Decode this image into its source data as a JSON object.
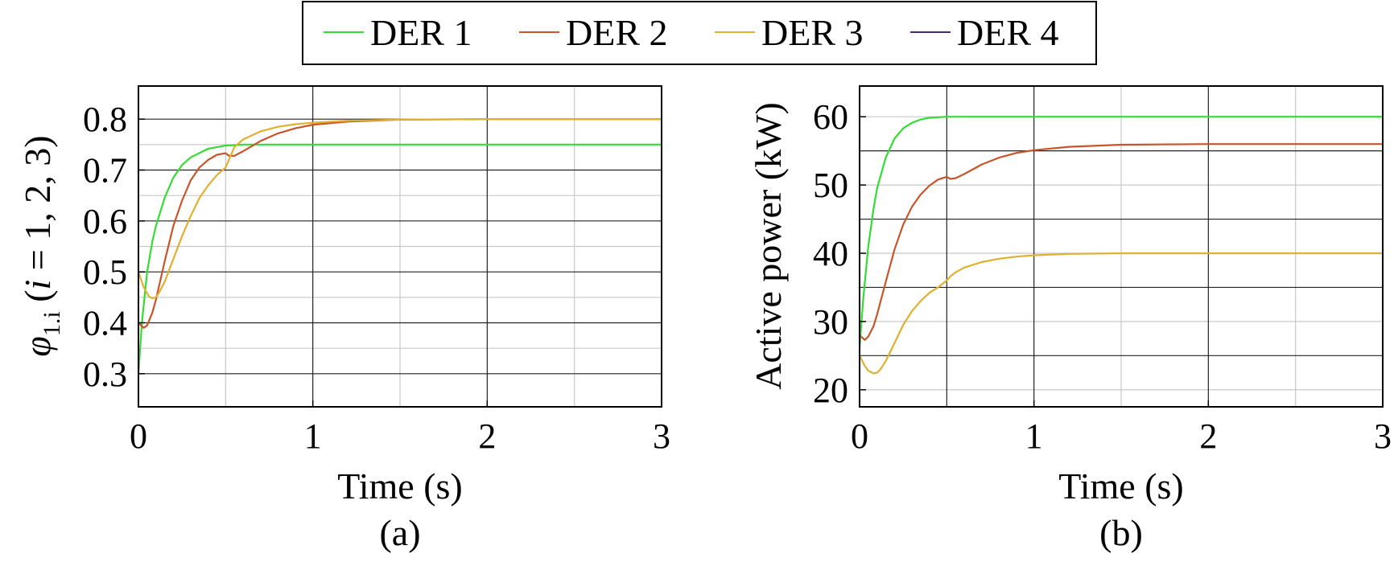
{
  "legend": {
    "entries": [
      {
        "label": "DER 1",
        "color": "#33dd33"
      },
      {
        "label": "DER 2",
        "color": "#c8552a"
      },
      {
        "label": "DER 3",
        "color": "#e0b030"
      },
      {
        "label": "DER 4",
        "color": "#4a2a6a"
      }
    ]
  },
  "chart_data": [
    {
      "type": "line",
      "caption": "(a)",
      "xlabel": "Time (s)",
      "ylabel_symbol": "φ",
      "ylabel_subscript": "1.i",
      "ylabel_rest_open": " (",
      "ylabel_italic": "i",
      "ylabel_rest_close": " = 1, 2, 3)",
      "xlim": [
        0,
        3
      ],
      "ylim": [
        0.235,
        0.865
      ],
      "xticks": [
        0,
        1,
        2,
        3
      ],
      "xtick_labels": [
        "0",
        "1",
        "2",
        "3"
      ],
      "yticks": [
        0.3,
        0.4,
        0.5,
        0.6,
        0.7,
        0.8
      ],
      "ytick_labels": [
        "0.3",
        "0.4",
        "0.5",
        "0.6",
        "0.7",
        "0.8"
      ],
      "major_grid_x": [
        1,
        2
      ],
      "minor_grid_x": [
        0.5,
        1.5,
        2.5
      ],
      "major_grid_y": [
        0.3,
        0.4,
        0.5,
        0.6,
        0.7,
        0.8
      ],
      "minor_grid_y": [
        0.35,
        0.45,
        0.55,
        0.65,
        0.75
      ],
      "grid": true,
      "series": [
        {
          "name": "DER 1",
          "color": "#33dd33",
          "x": [
            0,
            0.02,
            0.05,
            0.08,
            0.1,
            0.15,
            0.2,
            0.25,
            0.3,
            0.4,
            0.5,
            0.6,
            0.8,
            1.0,
            1.5,
            2.0,
            3.0
          ],
          "y": [
            0.3,
            0.4,
            0.5,
            0.56,
            0.59,
            0.645,
            0.685,
            0.71,
            0.725,
            0.742,
            0.748,
            0.75,
            0.75,
            0.75,
            0.75,
            0.75,
            0.75
          ]
        },
        {
          "name": "DER 2",
          "color": "#c8552a",
          "x": [
            0,
            0.03,
            0.05,
            0.08,
            0.1,
            0.15,
            0.2,
            0.25,
            0.3,
            0.35,
            0.4,
            0.45,
            0.5,
            0.52,
            0.55,
            0.6,
            0.7,
            0.8,
            0.9,
            1.0,
            1.2,
            1.5,
            2.0,
            3.0
          ],
          "y": [
            0.4,
            0.39,
            0.395,
            0.42,
            0.445,
            0.52,
            0.59,
            0.64,
            0.68,
            0.705,
            0.72,
            0.73,
            0.733,
            0.728,
            0.728,
            0.737,
            0.757,
            0.772,
            0.782,
            0.789,
            0.795,
            0.799,
            0.8,
            0.8
          ]
        },
        {
          "name": "DER 3",
          "color": "#e0b030",
          "x": [
            0,
            0.03,
            0.06,
            0.08,
            0.1,
            0.12,
            0.15,
            0.2,
            0.25,
            0.3,
            0.35,
            0.4,
            0.45,
            0.5,
            0.55,
            0.6,
            0.7,
            0.8,
            0.9,
            1.0,
            1.2,
            1.5,
            2.0,
            3.0
          ],
          "y": [
            0.5,
            0.47,
            0.452,
            0.448,
            0.45,
            0.46,
            0.48,
            0.525,
            0.57,
            0.61,
            0.645,
            0.67,
            0.69,
            0.705,
            0.745,
            0.76,
            0.776,
            0.785,
            0.79,
            0.793,
            0.797,
            0.799,
            0.8,
            0.8
          ]
        }
      ]
    },
    {
      "type": "line",
      "caption": "(b)",
      "xlabel": "Time (s)",
      "ylabel": "Active power (kW)",
      "xlim": [
        0,
        3
      ],
      "ylim": [
        17.5,
        64.5
      ],
      "xticks": [
        0,
        1,
        2,
        3
      ],
      "xtick_labels": [
        "0",
        "1",
        "2",
        "3"
      ],
      "yticks": [
        20,
        30,
        40,
        50,
        60
      ],
      "ytick_labels": [
        "20",
        "30",
        "40",
        "50",
        "60"
      ],
      "major_grid_x": [
        0.5,
        1,
        2
      ],
      "minor_grid_x": [
        1.5,
        2.5
      ],
      "major_grid_y": [
        25,
        35,
        45,
        55
      ],
      "minor_grid_y": [
        20,
        30,
        40,
        50,
        60
      ],
      "grid": true,
      "series": [
        {
          "name": "DER 1",
          "color": "#33dd33",
          "x": [
            0,
            0.02,
            0.05,
            0.08,
            0.1,
            0.15,
            0.2,
            0.25,
            0.3,
            0.35,
            0.4,
            0.5,
            0.6,
            0.8,
            1.0,
            2.0,
            3.0
          ],
          "y": [
            26,
            33,
            41,
            46.5,
            49.5,
            54,
            56.8,
            58.3,
            59.1,
            59.6,
            59.85,
            60,
            60,
            60,
            60,
            60,
            60
          ]
        },
        {
          "name": "DER 2",
          "color": "#c8552a",
          "x": [
            0,
            0.03,
            0.05,
            0.08,
            0.1,
            0.15,
            0.2,
            0.25,
            0.3,
            0.35,
            0.4,
            0.45,
            0.5,
            0.52,
            0.55,
            0.6,
            0.7,
            0.8,
            0.9,
            1.0,
            1.2,
            1.5,
            2.0,
            3.0
          ],
          "y": [
            28,
            27.3,
            27.8,
            29.3,
            31,
            35.8,
            40.5,
            44.2,
            46.8,
            48.6,
            49.9,
            50.8,
            51.2,
            50.9,
            51,
            51.6,
            53,
            54,
            54.7,
            55.1,
            55.6,
            55.9,
            56,
            56
          ]
        },
        {
          "name": "DER 3",
          "color": "#e0b030",
          "x": [
            0,
            0.03,
            0.05,
            0.08,
            0.1,
            0.12,
            0.15,
            0.2,
            0.25,
            0.3,
            0.35,
            0.4,
            0.45,
            0.5,
            0.52,
            0.55,
            0.6,
            0.7,
            0.8,
            0.9,
            1.0,
            1.2,
            1.5,
            2.0,
            3.0
          ],
          "y": [
            25,
            23.5,
            22.8,
            22.4,
            22.5,
            23,
            24.2,
            26.8,
            29.5,
            31.5,
            33,
            34.2,
            35,
            36,
            36.6,
            37.2,
            37.9,
            38.7,
            39.2,
            39.5,
            39.7,
            39.9,
            40,
            40,
            40
          ]
        }
      ]
    }
  ]
}
